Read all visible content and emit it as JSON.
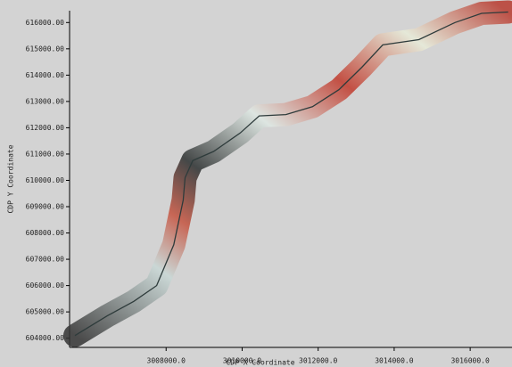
{
  "chart_data": {
    "type": "line",
    "x_label": "CDP X Coordinate",
    "y_label": "CDP Y Coordinate",
    "xlim": [
      3005460,
      3017100
    ],
    "ylim": [
      603650,
      616450
    ],
    "xticks": [
      {
        "value": 3008000,
        "label": "3008000.0"
      },
      {
        "value": 3010000,
        "label": "3010000.0"
      },
      {
        "value": 3012000,
        "label": "3012000.0"
      },
      {
        "value": 3014000,
        "label": "3014000.0"
      },
      {
        "value": 3016000,
        "label": "3016000.0"
      }
    ],
    "yticks": [
      {
        "value": 604000,
        "label": "604000.00"
      },
      {
        "value": 605000,
        "label": "605000.00"
      },
      {
        "value": 606000,
        "label": "606000.00"
      },
      {
        "value": 607000,
        "label": "607000.00"
      },
      {
        "value": 608000,
        "label": "608000.00"
      },
      {
        "value": 609000,
        "label": "609000.00"
      },
      {
        "value": 610000,
        "label": "610000.00"
      },
      {
        "value": 611000,
        "label": "611000.00"
      },
      {
        "value": 612000,
        "label": "612000.00"
      },
      {
        "value": 613000,
        "label": "613000.00"
      },
      {
        "value": 614000,
        "label": "614000.00"
      },
      {
        "value": 615000,
        "label": "615000.00"
      },
      {
        "value": 616000,
        "label": "616000.00"
      }
    ],
    "x": [
      3005600,
      3006450,
      3007150,
      3007750,
      3008200,
      3008450,
      3008500,
      3008700,
      3009250,
      3009950,
      3010450,
      3011150,
      3011850,
      3012550,
      3013150,
      3013700,
      3014650,
      3015600,
      3016300,
      3017000
    ],
    "series": [
      {
        "color": "#2e3b3b",
        "values": [
          604100,
          604850,
          605400,
          606000,
          607550,
          609250,
          610100,
          610750,
          611100,
          611800,
          612450,
          612500,
          612800,
          613450,
          614300,
          615150,
          615350,
          616000,
          616350,
          616400
        ]
      }
    ]
  }
}
